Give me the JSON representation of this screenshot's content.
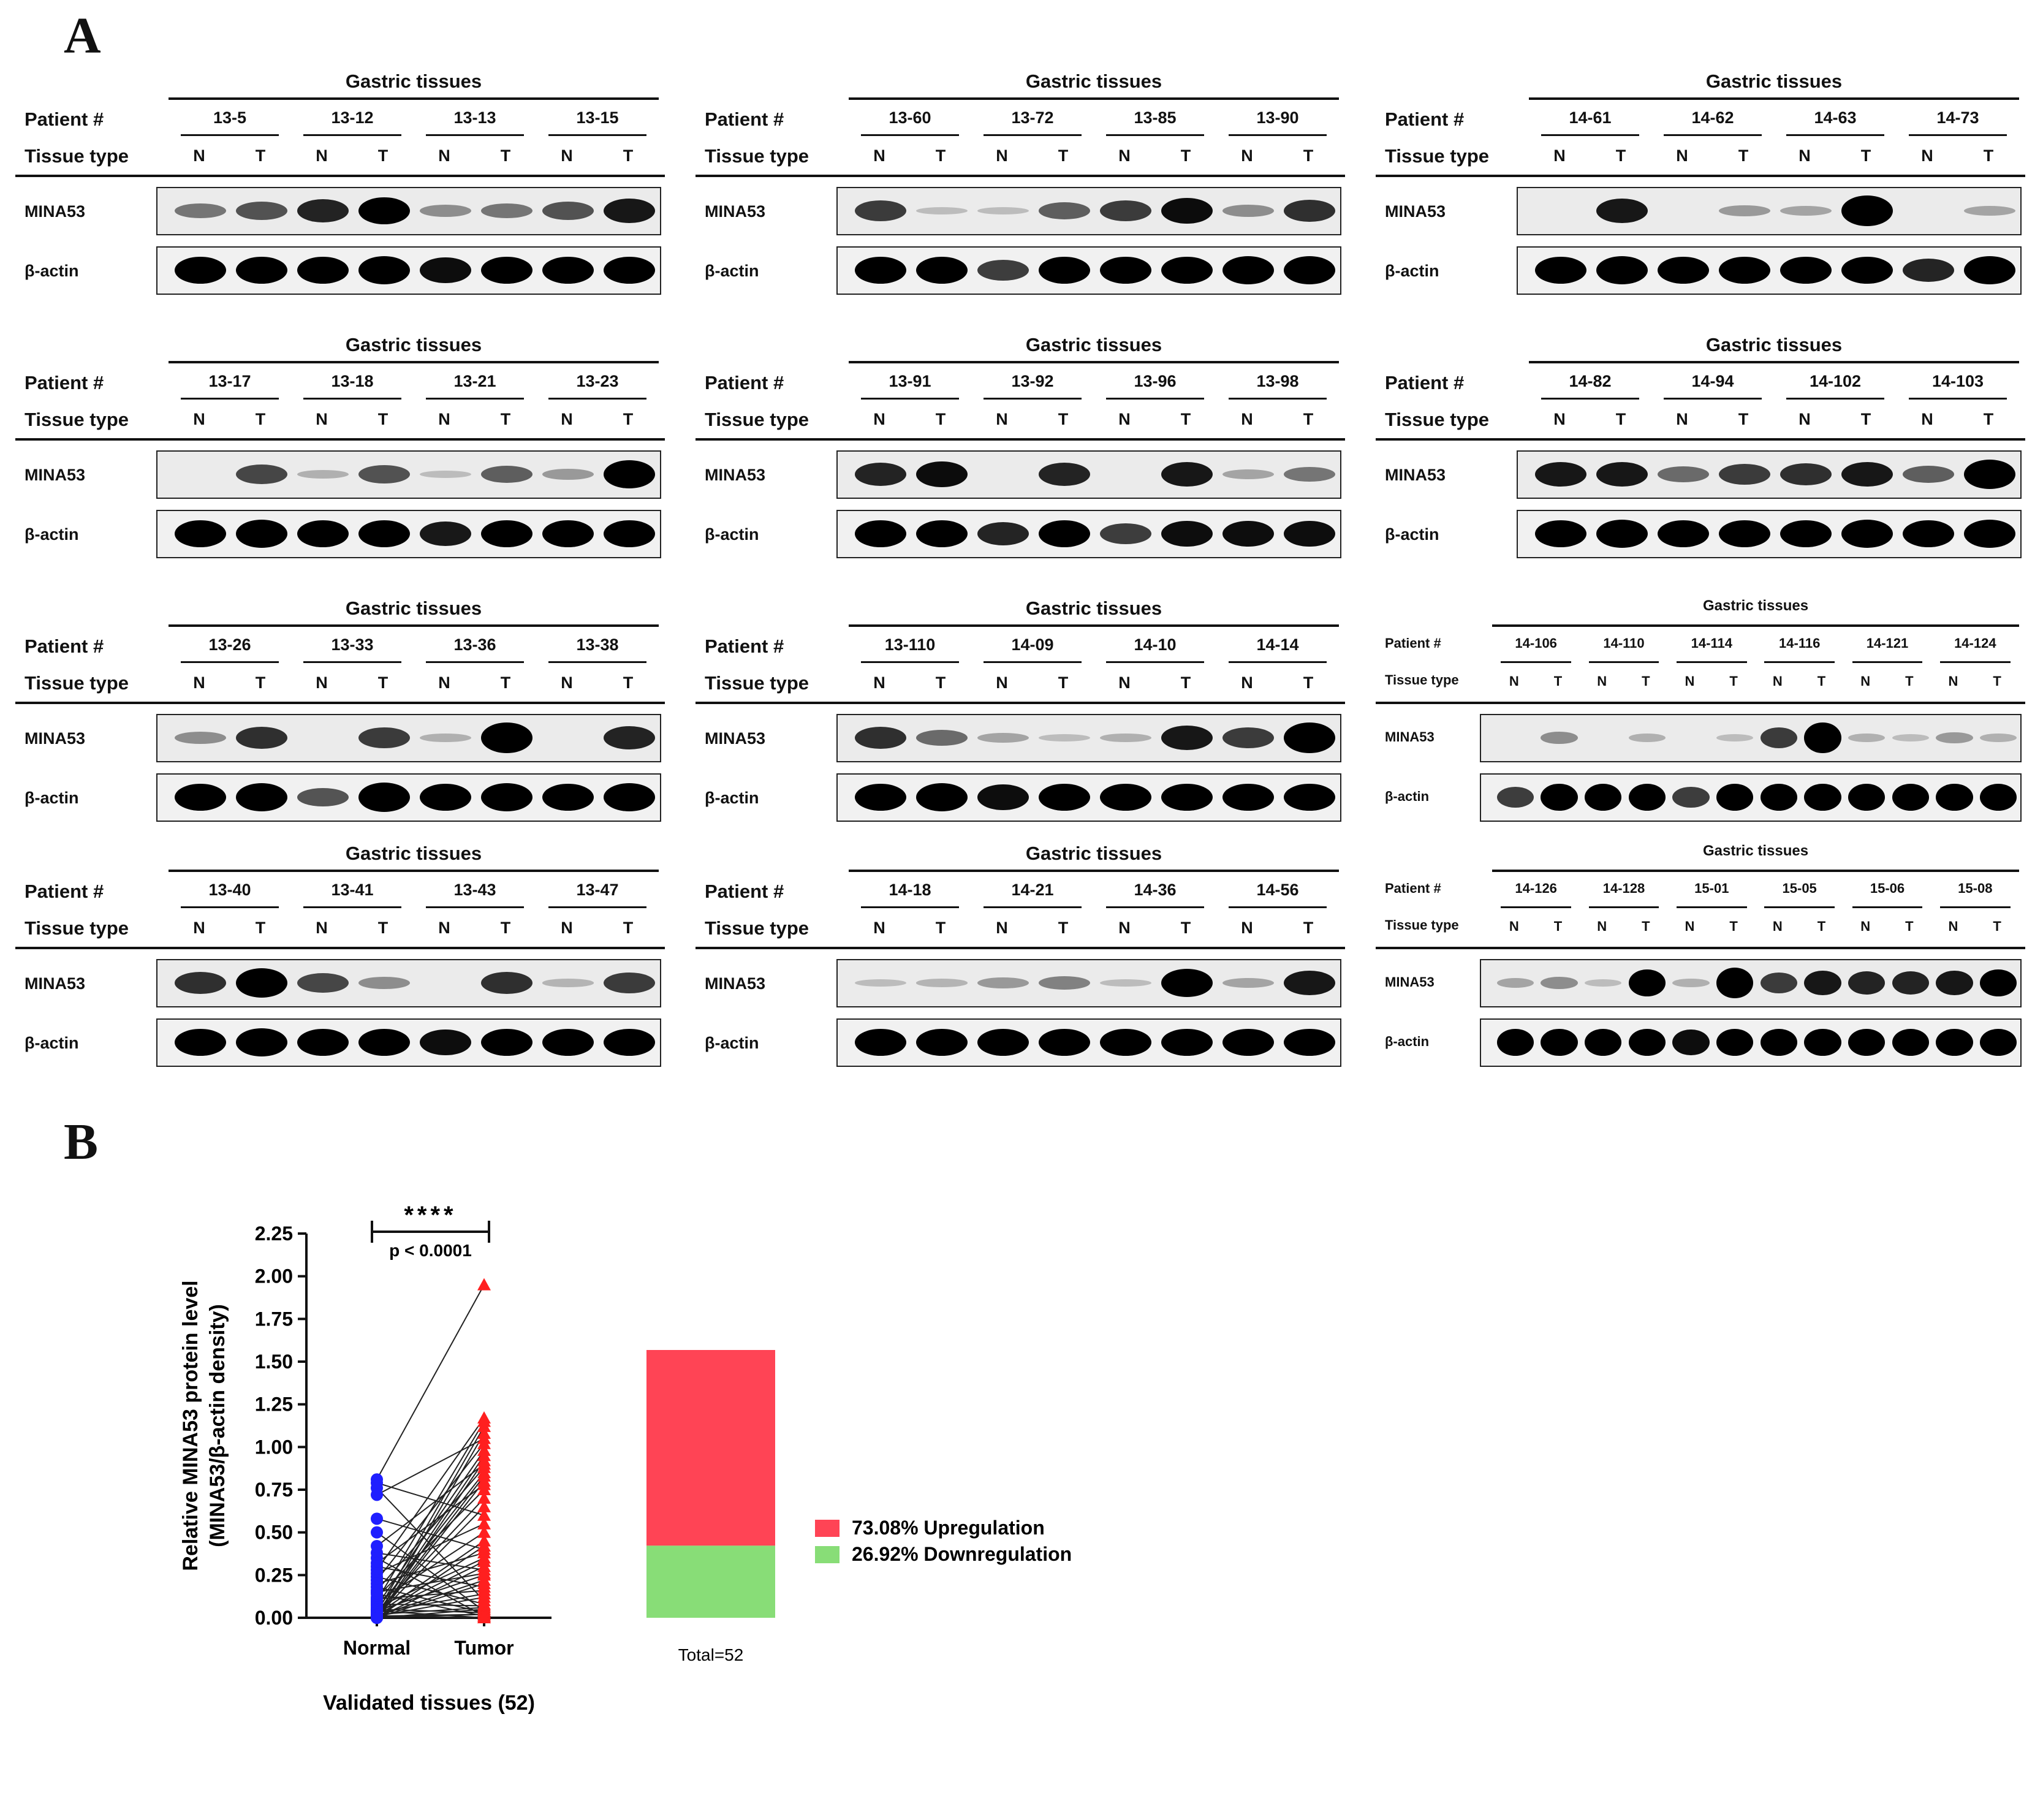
{
  "panels": {
    "a": "A",
    "b": "B"
  },
  "labels": {
    "group": "Gastric tissues",
    "patient": "Patient #",
    "tissue_type": "Tissue type",
    "normal": "N",
    "tumor": "T",
    "target": "MINA53",
    "control": "β-actin"
  },
  "blots": [
    {
      "patients": [
        "13-5",
        "13-12",
        "13-13",
        "13-15"
      ],
      "minA": [
        [
          0.35,
          0.5
        ],
        [
          0.7,
          0.85
        ],
        [
          0.25,
          0.35
        ],
        [
          0.5,
          0.75
        ]
      ],
      "actin": [
        [
          0.85,
          0.85
        ],
        [
          0.85,
          0.9
        ],
        [
          0.8,
          0.85
        ],
        [
          0.85,
          0.85
        ]
      ]
    },
    {
      "patients": [
        "13-60",
        "13-72",
        "13-85",
        "13-90"
      ],
      "minA": [
        [
          0.6,
          0.05
        ],
        [
          0.05,
          0.45
        ],
        [
          0.6,
          0.8
        ],
        [
          0.25,
          0.65
        ]
      ],
      "actin": [
        [
          0.85,
          0.85
        ],
        [
          0.6,
          0.85
        ],
        [
          0.85,
          0.85
        ],
        [
          0.9,
          0.9
        ]
      ]
    },
    {
      "patients": [
        "14-61",
        "14-62",
        "14-63",
        "14-73"
      ],
      "minA": [
        [
          0.03,
          0.75
        ],
        [
          0.03,
          0.2
        ],
        [
          0.15,
          1.0
        ],
        [
          0.03,
          0.15
        ]
      ],
      "actin": [
        [
          0.85,
          0.9
        ],
        [
          0.85,
          0.85
        ],
        [
          0.85,
          0.85
        ],
        [
          0.7,
          0.9
        ]
      ]
    },
    {
      "patients": [
        "13-17",
        "13-18",
        "13-21",
        "13-23"
      ],
      "minA": [
        [
          0.03,
          0.55
        ],
        [
          0.1,
          0.5
        ],
        [
          0.05,
          0.45
        ],
        [
          0.2,
          0.9
        ]
      ],
      "actin": [
        [
          0.85,
          0.9
        ],
        [
          0.85,
          0.85
        ],
        [
          0.75,
          0.85
        ],
        [
          0.85,
          0.85
        ]
      ]
    },
    {
      "patients": [
        "13-91",
        "13-92",
        "13-96",
        "13-98"
      ],
      "minA": [
        [
          0.7,
          0.8
        ],
        [
          0.03,
          0.7
        ],
        [
          0.03,
          0.75
        ],
        [
          0.15,
          0.35
        ]
      ],
      "actin": [
        [
          0.85,
          0.85
        ],
        [
          0.7,
          0.85
        ],
        [
          0.6,
          0.8
        ],
        [
          0.8,
          0.8
        ]
      ]
    },
    {
      "patients": [
        "14-82",
        "14-94",
        "14-102",
        "14-103"
      ],
      "minA": [
        [
          0.75,
          0.75
        ],
        [
          0.4,
          0.6
        ],
        [
          0.65,
          0.75
        ],
        [
          0.45,
          0.95
        ]
      ],
      "actin": [
        [
          0.85,
          0.9
        ],
        [
          0.85,
          0.85
        ],
        [
          0.85,
          0.9
        ],
        [
          0.85,
          0.9
        ]
      ]
    },
    {
      "patients": [
        "13-26",
        "13-33",
        "13-36",
        "13-38"
      ],
      "minA": [
        [
          0.25,
          0.65
        ],
        [
          0.03,
          0.6
        ],
        [
          0.1,
          1.0
        ],
        [
          0.03,
          0.7
        ]
      ],
      "actin": [
        [
          0.85,
          0.9
        ],
        [
          0.5,
          0.95
        ],
        [
          0.85,
          0.9
        ],
        [
          0.85,
          0.9
        ]
      ]
    },
    {
      "patients": [
        "13-110",
        "14-09",
        "14-10",
        "14-14"
      ],
      "minA": [
        [
          0.65,
          0.4
        ],
        [
          0.15,
          0.05
        ],
        [
          0.1,
          0.75
        ],
        [
          0.6,
          1.0
        ]
      ],
      "actin": [
        [
          0.85,
          0.9
        ],
        [
          0.8,
          0.85
        ],
        [
          0.85,
          0.85
        ],
        [
          0.85,
          0.85
        ]
      ]
    },
    {
      "patients": [
        "14-106",
        "14-110",
        "14-114",
        "14-116",
        "14-121",
        "14-124"
      ],
      "minA": [
        [
          0.03,
          0.25
        ],
        [
          0.03,
          0.1
        ],
        [
          0.03,
          0.05
        ],
        [
          0.6,
          1.0
        ],
        [
          0.1,
          0.05
        ],
        [
          0.2,
          0.1
        ]
      ],
      "actin": [
        [
          0.6,
          0.85
        ],
        [
          0.85,
          0.85
        ],
        [
          0.6,
          0.85
        ],
        [
          0.85,
          0.85
        ],
        [
          0.85,
          0.85
        ],
        [
          0.85,
          0.85
        ]
      ]
    },
    {
      "patients": [
        "13-40",
        "13-41",
        "13-43",
        "13-47"
      ],
      "minA": [
        [
          0.65,
          0.95
        ],
        [
          0.55,
          0.25
        ],
        [
          0.03,
          0.65
        ],
        [
          0.08,
          0.6
        ]
      ],
      "actin": [
        [
          0.85,
          0.9
        ],
        [
          0.85,
          0.85
        ],
        [
          0.8,
          0.85
        ],
        [
          0.85,
          0.85
        ]
      ]
    },
    {
      "patients": [
        "14-18",
        "14-21",
        "14-36",
        "14-56"
      ],
      "minA": [
        [
          0.05,
          0.08
        ],
        [
          0.2,
          0.3
        ],
        [
          0.05,
          0.9
        ],
        [
          0.15,
          0.75
        ]
      ],
      "actin": [
        [
          0.85,
          0.85
        ],
        [
          0.85,
          0.85
        ],
        [
          0.85,
          0.85
        ],
        [
          0.85,
          0.85
        ]
      ]
    },
    {
      "patients": [
        "14-126",
        "14-128",
        "15-01",
        "15-05",
        "15-06",
        "15-08"
      ],
      "minA": [
        [
          0.15,
          0.25
        ],
        [
          0.05,
          0.85
        ],
        [
          0.1,
          1.0
        ],
        [
          0.6,
          0.75
        ],
        [
          0.7,
          0.7
        ],
        [
          0.75,
          0.85
        ]
      ],
      "actin": [
        [
          0.85,
          0.85
        ],
        [
          0.85,
          0.85
        ],
        [
          0.8,
          0.85
        ],
        [
          0.85,
          0.85
        ],
        [
          0.85,
          0.85
        ],
        [
          0.85,
          0.85
        ]
      ]
    }
  ],
  "chart_data": [
    {
      "type": "scatter",
      "ylabel_lines": [
        "Relative MINA53 protein level",
        "(MINA53/β-actin density)"
      ],
      "xlabel": "Validated tissues (52)",
      "categories": [
        "Normal",
        "Tumor"
      ],
      "ylim": [
        0,
        2.25
      ],
      "yticks": [
        "0.00",
        "0.25",
        "0.50",
        "0.75",
        "1.00",
        "1.25",
        "1.50",
        "1.75",
        "2.00",
        "2.25"
      ],
      "significance": "****",
      "pvalue": "p < 0.0001",
      "series": [
        {
          "name": "Normal",
          "color": "#1f1fff",
          "values": [
            0.81,
            0.79,
            0.76,
            0.72,
            0.58,
            0.5,
            0.42,
            0.38,
            0.35,
            0.32,
            0.3,
            0.28,
            0.26,
            0.24,
            0.22,
            0.2,
            0.18,
            0.16,
            0.15,
            0.14,
            0.12,
            0.11,
            0.1,
            0.09,
            0.08,
            0.07,
            0.06,
            0.05,
            0.05,
            0.04,
            0.04,
            0.03,
            0.03,
            0.03,
            0.02,
            0.02,
            0.02,
            0.02,
            0.01,
            0.01,
            0.01,
            0.01,
            0.01,
            0.01,
            0.0,
            0.0,
            0.0,
            0.0,
            0.0,
            0.0,
            0.0,
            0.0
          ]
        },
        {
          "name": "Tumor",
          "color": "#ff1f1f",
          "values": [
            1.95,
            1.17,
            1.15,
            1.12,
            1.08,
            1.05,
            1.02,
            0.98,
            0.95,
            0.92,
            0.9,
            0.88,
            0.85,
            0.83,
            0.8,
            0.78,
            0.75,
            0.7,
            0.65,
            0.6,
            0.55,
            0.5,
            0.45,
            0.42,
            0.4,
            0.38,
            0.35,
            0.33,
            0.3,
            0.28,
            0.26,
            0.25,
            0.22,
            0.2,
            0.18,
            0.16,
            0.14,
            0.12,
            0.1,
            0.08,
            0.07,
            0.06,
            0.05,
            0.04,
            0.03,
            0.03,
            0.02,
            0.02,
            0.01,
            0.01,
            0.0,
            0.0
          ]
        }
      ]
    },
    {
      "type": "bar",
      "stacked": true,
      "categories": [
        "Total=52"
      ],
      "series": [
        {
          "name": "73.08%  Upregulation",
          "percent": 73.08,
          "color": "#ff4455"
        },
        {
          "name": "26.92%  Downregulation",
          "percent": 26.92,
          "color": "#88dd77"
        }
      ],
      "legend": "right"
    }
  ]
}
